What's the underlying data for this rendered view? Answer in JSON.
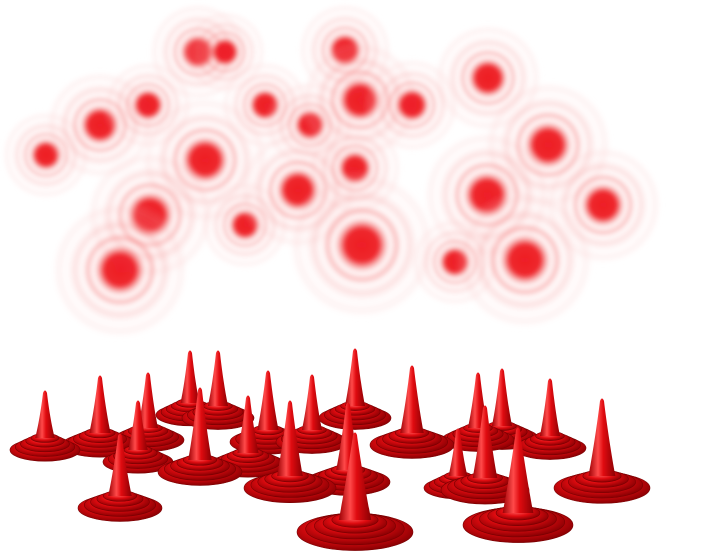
{
  "image": {
    "subject": "blurred-circles-and-cones",
    "colors": {
      "background": "#ffffff",
      "glow_core": "#ee1c24",
      "glow_mid": "#f36a6a",
      "glow_fade": "#ffe3e3",
      "cone_light": "#ff4a4a",
      "cone_mid": "#e00b10",
      "cone_dark": "#9e0004"
    }
  }
}
